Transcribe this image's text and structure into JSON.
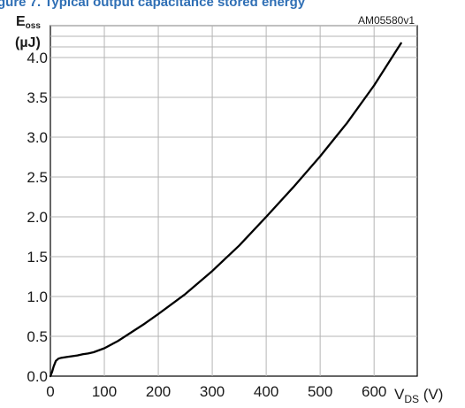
{
  "caption": "gure 7. Typical output capacitance stored energy",
  "chart_data": {
    "type": "line",
    "reference": "AM05580v1",
    "ylabel": {
      "main": "E",
      "sub": "oss",
      "unit": "(µJ)"
    },
    "xlabel": {
      "main": "V",
      "sub": "DS",
      "unit": " (V)"
    },
    "xlim": [
      0,
      680
    ],
    "ylim": [
      0,
      4.4
    ],
    "xticks": [
      0,
      100,
      200,
      300,
      400,
      500,
      600
    ],
    "yticks": [
      0.0,
      0.5,
      1.0,
      1.5,
      2.0,
      2.5,
      3.0,
      3.5,
      4.0
    ],
    "ytick_labels": [
      "0.0",
      "0.5",
      "1.0",
      "1.5",
      "2.0",
      "2.5",
      "3.0",
      "3.5",
      "4.0"
    ],
    "grid": true,
    "series": [
      {
        "color": "#000000",
        "x": [
          0,
          3,
          6,
          10,
          15,
          20,
          25,
          30,
          40,
          50,
          60,
          70,
          80,
          100,
          125,
          150,
          175,
          200,
          250,
          300,
          350,
          400,
          450,
          500,
          550,
          600,
          650
        ],
        "y": [
          0.0,
          0.05,
          0.12,
          0.19,
          0.22,
          0.23,
          0.235,
          0.24,
          0.25,
          0.26,
          0.275,
          0.285,
          0.3,
          0.35,
          0.44,
          0.55,
          0.66,
          0.78,
          1.03,
          1.32,
          1.64,
          2.0,
          2.37,
          2.76,
          3.18,
          3.65,
          4.18
        ]
      }
    ]
  }
}
